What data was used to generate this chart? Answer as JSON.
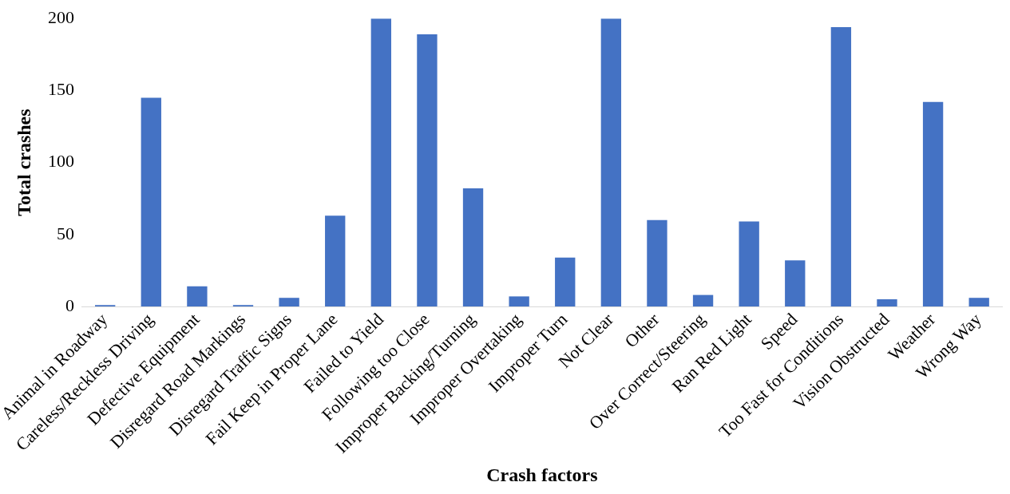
{
  "chart_data": {
    "type": "bar",
    "xlabel": "Crash factors",
    "ylabel": "Total crashes",
    "categories": [
      "Animal in Roadway",
      "Careless/Reckless Driving",
      "Defective Equipment",
      "Disregard Road Markings",
      "Disregard Traffic Signs",
      "Fail Keep in Proper Lane",
      "Failed to Yield",
      "Following too Close",
      "Improper Backing/Turning",
      "Improper Overtaking",
      "Improper Turn",
      "Not Clear",
      "Other",
      "Over Correct/Steering",
      "Ran Red Light",
      "Speed",
      "Too Fast for Conditions",
      "Vision Obstructed",
      "Weather",
      "Wrong Way"
    ],
    "values": [
      1,
      145,
      14,
      1,
      6,
      63,
      200,
      189,
      82,
      7,
      34,
      200,
      60,
      8,
      59,
      32,
      194,
      5,
      142,
      6
    ],
    "color": "#4472c4",
    "ylim": [
      0,
      200
    ],
    "yticks": [
      0,
      50,
      100,
      150,
      200
    ],
    "grid": false,
    "legend": false
  }
}
